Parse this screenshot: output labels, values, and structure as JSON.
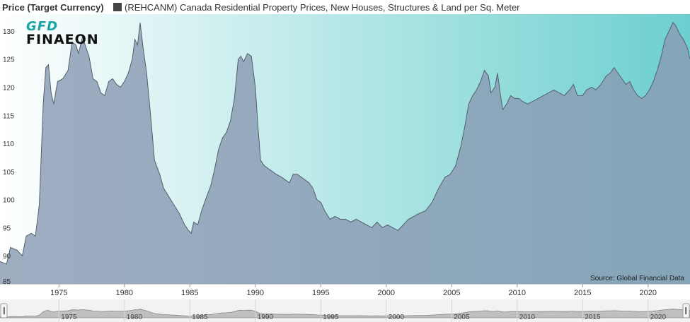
{
  "header": {
    "y_axis_title": "Price (Target Currency)",
    "legend_label": "(REHCANM) Canada Residential Property Prices, New Houses, Structures & Land per Sq. Meter",
    "legend_color": "#444444"
  },
  "logo": {
    "top": "GFD",
    "bottom": "FINAEON"
  },
  "source": "Source: Global Financial Data",
  "colors": {
    "gradient_left": "#ffffff",
    "gradient_right": "#6ccfcf",
    "area_fill": "#8a9bb3",
    "line": "#555e6a"
  },
  "chart_data": {
    "type": "area",
    "grid": false,
    "legend_position": "top",
    "xlim": [
      1970.5,
      2023.2
    ],
    "ylim": [
      85,
      133
    ],
    "yticks": [
      85,
      90,
      95,
      100,
      105,
      110,
      115,
      120,
      125,
      130
    ],
    "xticks": [
      1975,
      1980,
      1985,
      1990,
      1995,
      2000,
      2005,
      2010,
      2015,
      2020
    ],
    "series": [
      {
        "name": "(REHCANM) Canada Residential Property Prices, New Houses, Structures & Land per Sq. Meter",
        "points": [
          [
            1970.5,
            89
          ],
          [
            1971.0,
            88.5
          ],
          [
            1971.3,
            91.5
          ],
          [
            1971.8,
            91.0
          ],
          [
            1972.2,
            90.0
          ],
          [
            1972.5,
            93.5
          ],
          [
            1972.9,
            94.0
          ],
          [
            1973.2,
            93.5
          ],
          [
            1973.5,
            99.0
          ],
          [
            1973.8,
            117.0
          ],
          [
            1974.0,
            123.5
          ],
          [
            1974.2,
            124.0
          ],
          [
            1974.4,
            119.0
          ],
          [
            1974.6,
            117.0
          ],
          [
            1974.9,
            121.0
          ],
          [
            1975.3,
            121.5
          ],
          [
            1975.7,
            123.0
          ],
          [
            1976.0,
            128.0
          ],
          [
            1976.3,
            127.5
          ],
          [
            1976.5,
            126.0
          ],
          [
            1976.8,
            129.0
          ],
          [
            1977.0,
            127.5
          ],
          [
            1977.3,
            125.5
          ],
          [
            1977.6,
            121.5
          ],
          [
            1977.9,
            121.0
          ],
          [
            1978.2,
            119.0
          ],
          [
            1978.5,
            118.5
          ],
          [
            1978.8,
            121.0
          ],
          [
            1979.1,
            121.5
          ],
          [
            1979.4,
            120.5
          ],
          [
            1979.7,
            120.0
          ],
          [
            1980.0,
            121.0
          ],
          [
            1980.3,
            122.5
          ],
          [
            1980.6,
            125.0
          ],
          [
            1980.8,
            128.5
          ],
          [
            1981.0,
            127.5
          ],
          [
            1981.2,
            131.5
          ],
          [
            1981.4,
            127.5
          ],
          [
            1981.7,
            122.5
          ],
          [
            1982.0,
            115.0
          ],
          [
            1982.3,
            107.0
          ],
          [
            1982.7,
            104.5
          ],
          [
            1983.0,
            102.0
          ],
          [
            1983.4,
            100.5
          ],
          [
            1983.8,
            99.0
          ],
          [
            1984.2,
            97.5
          ],
          [
            1984.6,
            95.5
          ],
          [
            1984.9,
            94.5
          ],
          [
            1985.1,
            94.0
          ],
          [
            1985.3,
            96.0
          ],
          [
            1985.6,
            95.5
          ],
          [
            1985.9,
            98.0
          ],
          [
            1986.2,
            100.0
          ],
          [
            1986.6,
            102.5
          ],
          [
            1986.9,
            105.5
          ],
          [
            1987.2,
            109.0
          ],
          [
            1987.5,
            111.0
          ],
          [
            1987.8,
            112.0
          ],
          [
            1988.1,
            114.0
          ],
          [
            1988.4,
            118.0
          ],
          [
            1988.7,
            125.0
          ],
          [
            1988.9,
            125.5
          ],
          [
            1989.1,
            124.5
          ],
          [
            1989.4,
            126.0
          ],
          [
            1989.7,
            125.5
          ],
          [
            1990.0,
            120.0
          ],
          [
            1990.2,
            113.0
          ],
          [
            1990.4,
            107.0
          ],
          [
            1990.7,
            106.0
          ],
          [
            1991.0,
            105.5
          ],
          [
            1991.3,
            105.0
          ],
          [
            1991.6,
            104.5
          ],
          [
            1992.0,
            104.0
          ],
          [
            1992.3,
            103.5
          ],
          [
            1992.6,
            103.0
          ],
          [
            1992.9,
            104.5
          ],
          [
            1993.2,
            104.5
          ],
          [
            1993.5,
            104.0
          ],
          [
            1993.8,
            103.5
          ],
          [
            1994.1,
            103.0
          ],
          [
            1994.4,
            102.0
          ],
          [
            1994.7,
            100.0
          ],
          [
            1995.0,
            99.5
          ],
          [
            1995.3,
            98.0
          ],
          [
            1995.7,
            96.5
          ],
          [
            1996.1,
            97.0
          ],
          [
            1996.5,
            96.5
          ],
          [
            1996.9,
            96.5
          ],
          [
            1997.3,
            96.0
          ],
          [
            1997.7,
            96.5
          ],
          [
            1998.1,
            96.0
          ],
          [
            1998.5,
            95.5
          ],
          [
            1998.9,
            95.0
          ],
          [
            1999.3,
            96.0
          ],
          [
            1999.7,
            95.0
          ],
          [
            2000.1,
            95.5
          ],
          [
            2000.5,
            95.0
          ],
          [
            2000.9,
            94.5
          ],
          [
            2001.3,
            95.5
          ],
          [
            2001.7,
            96.5
          ],
          [
            2002.1,
            97.0
          ],
          [
            2002.5,
            97.5
          ],
          [
            2003.0,
            98.0
          ],
          [
            2003.5,
            99.5
          ],
          [
            2004.0,
            102.0
          ],
          [
            2004.5,
            104.0
          ],
          [
            2004.9,
            104.5
          ],
          [
            2005.3,
            106.0
          ],
          [
            2005.7,
            109.5
          ],
          [
            2006.0,
            113.0
          ],
          [
            2006.3,
            117.0
          ],
          [
            2006.6,
            118.5
          ],
          [
            2006.9,
            119.5
          ],
          [
            2007.2,
            121.0
          ],
          [
            2007.5,
            123.0
          ],
          [
            2007.8,
            122.0
          ],
          [
            2008.0,
            119.0
          ],
          [
            2008.3,
            120.0
          ],
          [
            2008.5,
            122.5
          ],
          [
            2008.7,
            119.0
          ],
          [
            2008.9,
            116.0
          ],
          [
            2009.2,
            117.0
          ],
          [
            2009.5,
            118.5
          ],
          [
            2009.8,
            118.0
          ],
          [
            2010.1,
            118.0
          ],
          [
            2010.4,
            117.5
          ],
          [
            2010.8,
            117.0
          ],
          [
            2011.2,
            117.5
          ],
          [
            2011.6,
            118.0
          ],
          [
            2012.0,
            118.5
          ],
          [
            2012.4,
            119.0
          ],
          [
            2012.8,
            119.5
          ],
          [
            2013.2,
            119.0
          ],
          [
            2013.6,
            118.5
          ],
          [
            2014.0,
            119.5
          ],
          [
            2014.3,
            120.5
          ],
          [
            2014.6,
            118.5
          ],
          [
            2015.0,
            118.5
          ],
          [
            2015.3,
            119.5
          ],
          [
            2015.7,
            120.0
          ],
          [
            2016.0,
            119.5
          ],
          [
            2016.4,
            120.5
          ],
          [
            2016.8,
            122.0
          ],
          [
            2017.1,
            122.5
          ],
          [
            2017.4,
            123.5
          ],
          [
            2017.7,
            122.5
          ],
          [
            2018.0,
            121.5
          ],
          [
            2018.3,
            120.5
          ],
          [
            2018.6,
            121.0
          ],
          [
            2018.9,
            119.5
          ],
          [
            2019.2,
            118.5
          ],
          [
            2019.5,
            118.0
          ],
          [
            2019.8,
            118.5
          ],
          [
            2020.1,
            119.5
          ],
          [
            2020.4,
            121.0
          ],
          [
            2020.7,
            123.0
          ],
          [
            2021.0,
            125.5
          ],
          [
            2021.3,
            128.5
          ],
          [
            2021.6,
            130.0
          ],
          [
            2021.9,
            131.5
          ],
          [
            2022.1,
            131.0
          ],
          [
            2022.4,
            129.5
          ],
          [
            2022.7,
            128.5
          ],
          [
            2023.0,
            127.0
          ],
          [
            2023.2,
            125.0
          ]
        ]
      }
    ]
  }
}
